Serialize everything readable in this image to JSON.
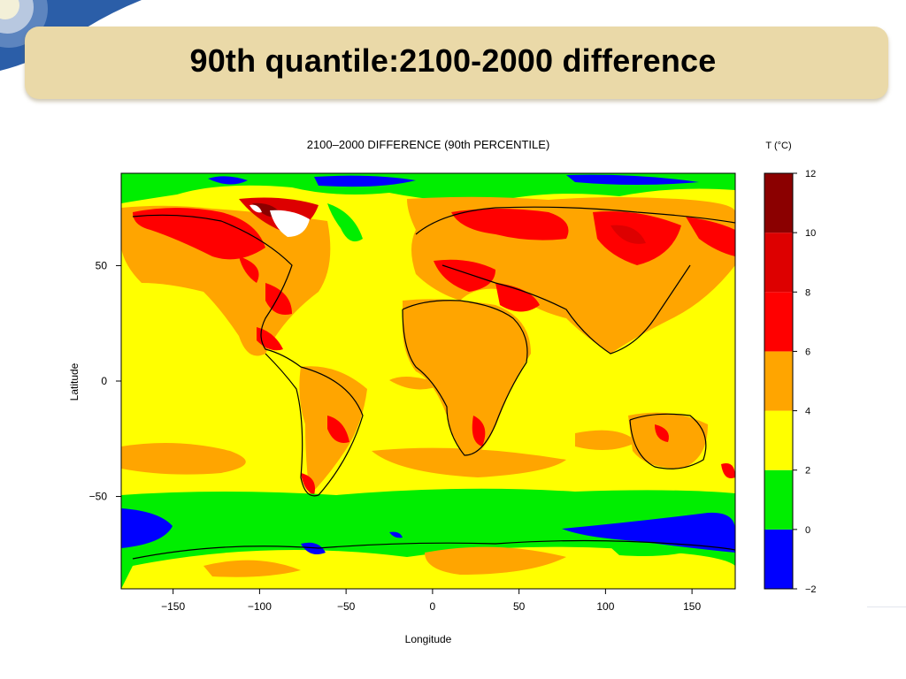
{
  "slide": {
    "title": "90th quantile:2100-2000 difference"
  },
  "chart_data": {
    "type": "heatmap",
    "title": "2100–2000 DIFFERENCE (90th PERCENTILE)",
    "xlabel": "Longitude",
    "ylabel": "Latitude",
    "xlim": [
      -180,
      175
    ],
    "ylim": [
      -90,
      90
    ],
    "x_ticks": [
      -150,
      -100,
      -50,
      0,
      50,
      100,
      150
    ],
    "y_ticks": [
      50,
      0,
      -50
    ],
    "x_tick_labels": [
      "−150",
      "−100",
      "−50",
      "0",
      "50",
      "100",
      "150"
    ],
    "y_tick_labels": [
      "50",
      "0",
      "−50"
    ],
    "colorbar": {
      "title": "T (°C)",
      "ticks": [
        12,
        10,
        8,
        6,
        4,
        2,
        0,
        -2
      ],
      "tick_labels": [
        "12",
        "10",
        "8",
        "6",
        "4",
        "2",
        "0",
        "−2"
      ],
      "bins": [
        {
          "min": -2,
          "max": 0,
          "color": "#0000ff"
        },
        {
          "min": 0,
          "max": 2,
          "color": "#00ee00"
        },
        {
          "min": 2,
          "max": 4,
          "color": "#ffff00"
        },
        {
          "min": 4,
          "max": 6,
          "color": "#ffa500"
        },
        {
          "min": 6,
          "max": 8,
          "color": "#ff0000"
        },
        {
          "min": 8,
          "max": 10,
          "color": "#dd0000"
        },
        {
          "min": 10,
          "max": 12,
          "color": "#8b0000"
        }
      ]
    }
  }
}
